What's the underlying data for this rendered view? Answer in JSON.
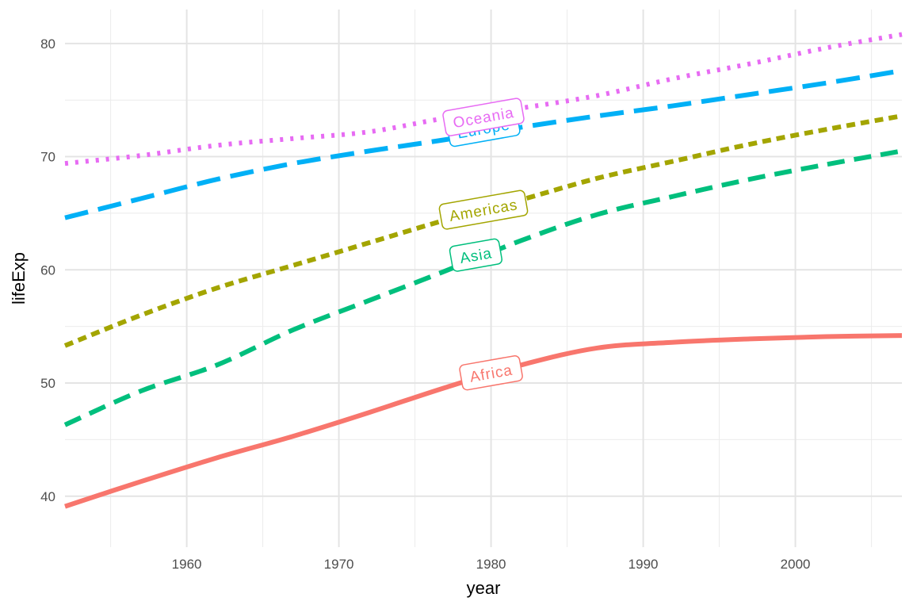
{
  "chart_data": {
    "type": "line",
    "title": "",
    "xlabel": "year",
    "ylabel": "lifeExp",
    "xlim": [
      1952,
      2007
    ],
    "ylim": [
      35.5,
      83
    ],
    "x_ticks": [
      1960,
      1970,
      1980,
      1990,
      2000
    ],
    "y_ticks": [
      40,
      50,
      60,
      70,
      80
    ],
    "x_tick_labels": [
      "1960",
      "1970",
      "1980",
      "1990",
      "2000"
    ],
    "y_tick_labels": [
      "40",
      "50",
      "60",
      "70",
      "80"
    ],
    "grid": true,
    "legend": "none (direct labels)",
    "series": [
      {
        "name": "Africa",
        "color": "#F8766D",
        "linetype": "solid",
        "label_at": [
          1980,
          50.9
        ],
        "label_rotation": -10,
        "x": [
          1952,
          1957,
          1962,
          1967,
          1972,
          1977,
          1982,
          1987,
          1992,
          1997,
          2002,
          2007
        ],
        "values": [
          39.1,
          41.3,
          43.4,
          45.3,
          47.4,
          49.6,
          51.6,
          53.1,
          53.6,
          53.9,
          54.1,
          54.2
        ]
      },
      {
        "name": "Americas",
        "color": "#A3A500",
        "linetype": "dotted-dash",
        "label_at": [
          1979.5,
          65.3
        ],
        "label_rotation": -10,
        "x": [
          1952,
          1957,
          1962,
          1967,
          1972,
          1977,
          1982,
          1987,
          1992,
          1997,
          2002,
          2007
        ],
        "values": [
          53.3,
          56.0,
          58.4,
          60.4,
          62.4,
          64.4,
          66.2,
          68.1,
          69.6,
          71.1,
          72.4,
          73.6
        ]
      },
      {
        "name": "Asia",
        "color": "#00BF7D",
        "linetype": "dashed",
        "label_at": [
          1979,
          61.3
        ],
        "label_rotation": -10,
        "x": [
          1952,
          1957,
          1962,
          1967,
          1972,
          1977,
          1982,
          1987,
          1992,
          1997,
          2002,
          2007
        ],
        "values": [
          46.3,
          49.3,
          51.6,
          54.7,
          57.3,
          59.9,
          62.6,
          64.9,
          66.5,
          68.0,
          69.3,
          70.5
        ]
      },
      {
        "name": "Europe",
        "color": "#00B0F6",
        "linetype": "long-dash",
        "label_at": [
          1979.5,
          72.5
        ],
        "label_rotation": -10,
        "x": [
          1952,
          1957,
          1962,
          1967,
          1972,
          1977,
          1982,
          1987,
          1992,
          1997,
          2002,
          2007
        ],
        "values": [
          64.6,
          66.3,
          68.0,
          69.4,
          70.5,
          71.5,
          72.6,
          73.6,
          74.5,
          75.5,
          76.5,
          77.6
        ]
      },
      {
        "name": "Oceania",
        "color": "#E76BF3",
        "linetype": "dotted",
        "label_at": [
          1979.5,
          73.5
        ],
        "label_rotation": -10,
        "x": [
          1952,
          1957,
          1962,
          1967,
          1972,
          1977,
          1982,
          1987,
          1992,
          1997,
          2002,
          2007
        ],
        "values": [
          69.4,
          70.1,
          71.0,
          71.6,
          72.2,
          73.4,
          74.3,
          75.4,
          76.9,
          78.2,
          79.6,
          80.8
        ]
      }
    ]
  }
}
